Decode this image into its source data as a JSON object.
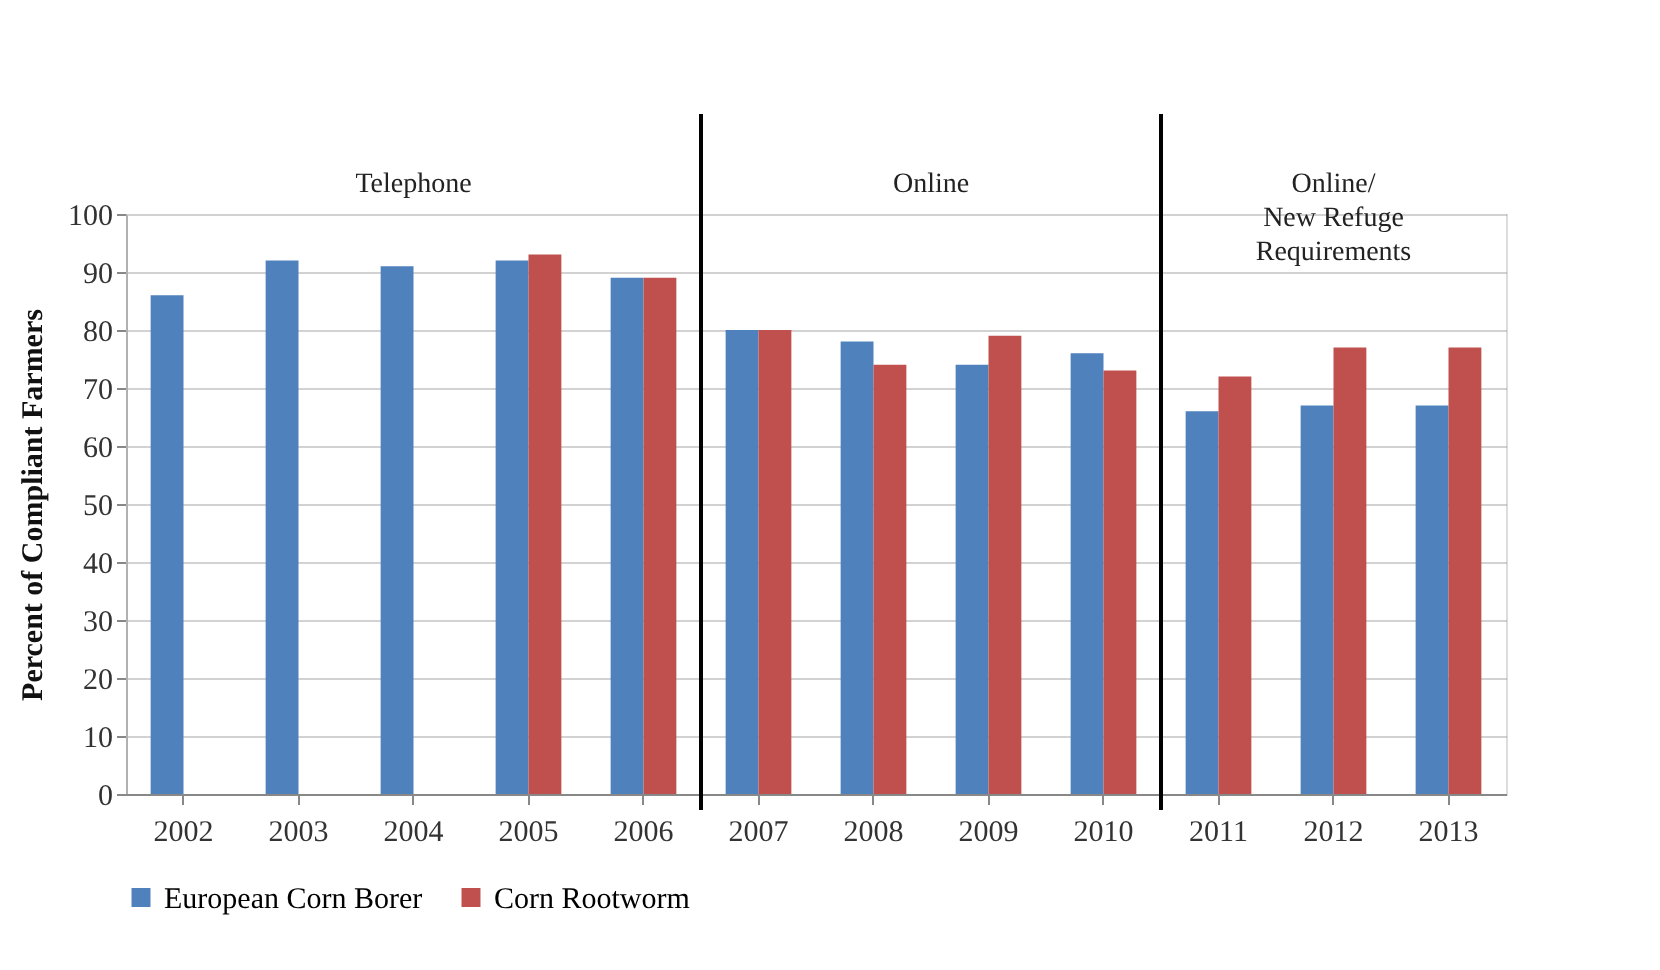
{
  "chart_data": {
    "type": "bar",
    "ylabel": "Percent of Compliant  Farmers",
    "categories": [
      "2002",
      "2003",
      "2004",
      "2005",
      "2006",
      "2007",
      "2008",
      "2009",
      "2010",
      "2011",
      "2012",
      "2013"
    ],
    "series": [
      {
        "name": "European Corn Borer",
        "color": "#4f81bd",
        "values": [
          86,
          92,
          91,
          92,
          89,
          80,
          78,
          74,
          76,
          66,
          67,
          67
        ]
      },
      {
        "name": "Corn Rootworm",
        "color": "#c0504d",
        "values": [
          null,
          null,
          null,
          93,
          89,
          80,
          74,
          79,
          73,
          72,
          77,
          77
        ]
      }
    ],
    "ylim": [
      0,
      100
    ],
    "yticks": [
      0,
      10,
      20,
      30,
      40,
      50,
      60,
      70,
      80,
      90,
      100
    ],
    "grid": "y",
    "legend": "bottom",
    "bands": [
      {
        "axis": "x",
        "from": "2002",
        "to": "2006",
        "label": "Telephone",
        "color": "#ffffff"
      },
      {
        "axis": "x",
        "from": "2007",
        "to": "2010",
        "label": "Online",
        "color": "#ffffff"
      },
      {
        "axis": "x",
        "from": "2011",
        "to": "2013",
        "label": "Online/\nNew Refuge\nRequirements",
        "color": "#ffffff"
      }
    ]
  }
}
